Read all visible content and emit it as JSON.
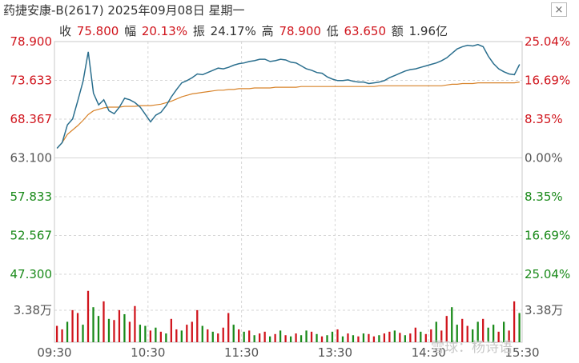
{
  "header": {
    "title": "药捷安康-B(2617) 2025年09月08日 星期一",
    "close_label": "×"
  },
  "stats": [
    {
      "label": "收",
      "value": "75.800"
    },
    {
      "label": "幅",
      "value": "20.13%"
    },
    {
      "label": "振",
      "value": "24.17%"
    },
    {
      "label": "高",
      "value": "78.900"
    },
    {
      "label": "低",
      "value": "63.650"
    },
    {
      "label": "额",
      "value": "1.96亿"
    }
  ],
  "colors": {
    "up": "#d0141c",
    "down": "#1a8a1a",
    "price_line": "#2b6f8e",
    "avg_line": "#d8832a",
    "grid": "#d6d6d6"
  },
  "watermark": "雪球：杨诗语",
  "chart_data": {
    "type": "line",
    "prev_close": 63.1,
    "price_ticks": [
      "78.900",
      "73.633",
      "68.367",
      "63.100",
      "57.833",
      "52.567",
      "47.300"
    ],
    "pct_ticks": [
      "25.04%",
      "16.69%",
      "8.35%",
      "0.00%",
      "8.35%",
      "16.69%",
      "25.04%"
    ],
    "ylim": [
      47.3,
      78.9
    ],
    "volume_tick": "3.38万",
    "volume_max": 100,
    "x_ticks": [
      "09:30",
      "10:30",
      "11:30",
      "13:30",
      "14:30",
      "15:30"
    ],
    "price": [
      64.4,
      65.2,
      67.6,
      68.4,
      70.9,
      73.5,
      77.5,
      71.9,
      70.3,
      71.0,
      69.5,
      69.1,
      70.0,
      71.2,
      71.0,
      70.6,
      70.0,
      69.0,
      68.0,
      68.9,
      69.3,
      70.2,
      71.4,
      72.4,
      73.3,
      73.6,
      74.0,
      74.5,
      74.4,
      74.7,
      75.0,
      75.3,
      75.2,
      75.4,
      75.7,
      75.9,
      76.0,
      76.2,
      76.3,
      76.5,
      76.5,
      76.2,
      76.3,
      76.5,
      76.4,
      76.1,
      76.0,
      75.6,
      75.2,
      75.0,
      74.7,
      74.6,
      74.1,
      73.8,
      73.6,
      73.6,
      73.7,
      73.5,
      73.4,
      73.4,
      73.2,
      73.3,
      73.4,
      73.6,
      74.0,
      74.3,
      74.6,
      74.9,
      75.1,
      75.2,
      75.4,
      75.6,
      75.8,
      76.0,
      76.3,
      76.7,
      77.3,
      77.9,
      78.2,
      78.4,
      78.3,
      78.5,
      78.2,
      76.9,
      75.9,
      75.2,
      74.8,
      74.5,
      74.4,
      75.8
    ],
    "avg": [
      64.4,
      65.2,
      66.3,
      66.9,
      67.5,
      68.2,
      69.0,
      69.5,
      69.7,
      69.9,
      70.0,
      70.0,
      70.0,
      70.1,
      70.1,
      70.1,
      70.2,
      70.2,
      70.2,
      70.3,
      70.4,
      70.6,
      70.8,
      71.1,
      71.4,
      71.6,
      71.8,
      71.9,
      72.0,
      72.1,
      72.2,
      72.3,
      72.3,
      72.4,
      72.4,
      72.5,
      72.5,
      72.5,
      72.6,
      72.6,
      72.6,
      72.6,
      72.7,
      72.7,
      72.7,
      72.7,
      72.7,
      72.8,
      72.8,
      72.8,
      72.8,
      72.8,
      72.8,
      72.8,
      72.8,
      72.8,
      72.8,
      72.8,
      72.8,
      72.8,
      72.8,
      72.8,
      72.9,
      72.9,
      72.9,
      72.9,
      72.9,
      72.9,
      72.9,
      72.9,
      72.9,
      72.9,
      72.9,
      72.9,
      72.9,
      73.0,
      73.1,
      73.1,
      73.2,
      73.2,
      73.2,
      73.3,
      73.3,
      73.3,
      73.3,
      73.3,
      73.3,
      73.3,
      73.3,
      73.4
    ],
    "volume": [
      28,
      22,
      35,
      55,
      50,
      30,
      88,
      60,
      45,
      70,
      40,
      38,
      55,
      48,
      35,
      62,
      30,
      28,
      20,
      25,
      18,
      15,
      40,
      22,
      20,
      30,
      35,
      55,
      28,
      22,
      18,
      15,
      25,
      50,
      30,
      22,
      18,
      20,
      12,
      15,
      18,
      10,
      14,
      20,
      12,
      10,
      15,
      12,
      20,
      18,
      14,
      10,
      12,
      18,
      22,
      10,
      15,
      12,
      10,
      15,
      14,
      10,
      12,
      15,
      18,
      20,
      16,
      12,
      15,
      25,
      18,
      14,
      22,
      35,
      20,
      45,
      60,
      30,
      40,
      28,
      22,
      35,
      40,
      25,
      30,
      18,
      35,
      20,
      70,
      50
    ],
    "volume_up": [
      1,
      1,
      0,
      1,
      1,
      0,
      1,
      0,
      0,
      1,
      0,
      1,
      1,
      0,
      1,
      1,
      0,
      0,
      1,
      0,
      1,
      0,
      1,
      1,
      0,
      1,
      1,
      1,
      0,
      1,
      0,
      1,
      1,
      1,
      0,
      1,
      0,
      1,
      0,
      1,
      1,
      0,
      1,
      0,
      1,
      0,
      1,
      0,
      0,
      1,
      0,
      1,
      0,
      0,
      1,
      0,
      1,
      0,
      1,
      0,
      1,
      1,
      0,
      1,
      1,
      0,
      1,
      0,
      1,
      1,
      0,
      1,
      1,
      0,
      1,
      1,
      0,
      0,
      1,
      1,
      0,
      0,
      1,
      0,
      0,
      1,
      0,
      1,
      1,
      0
    ]
  }
}
